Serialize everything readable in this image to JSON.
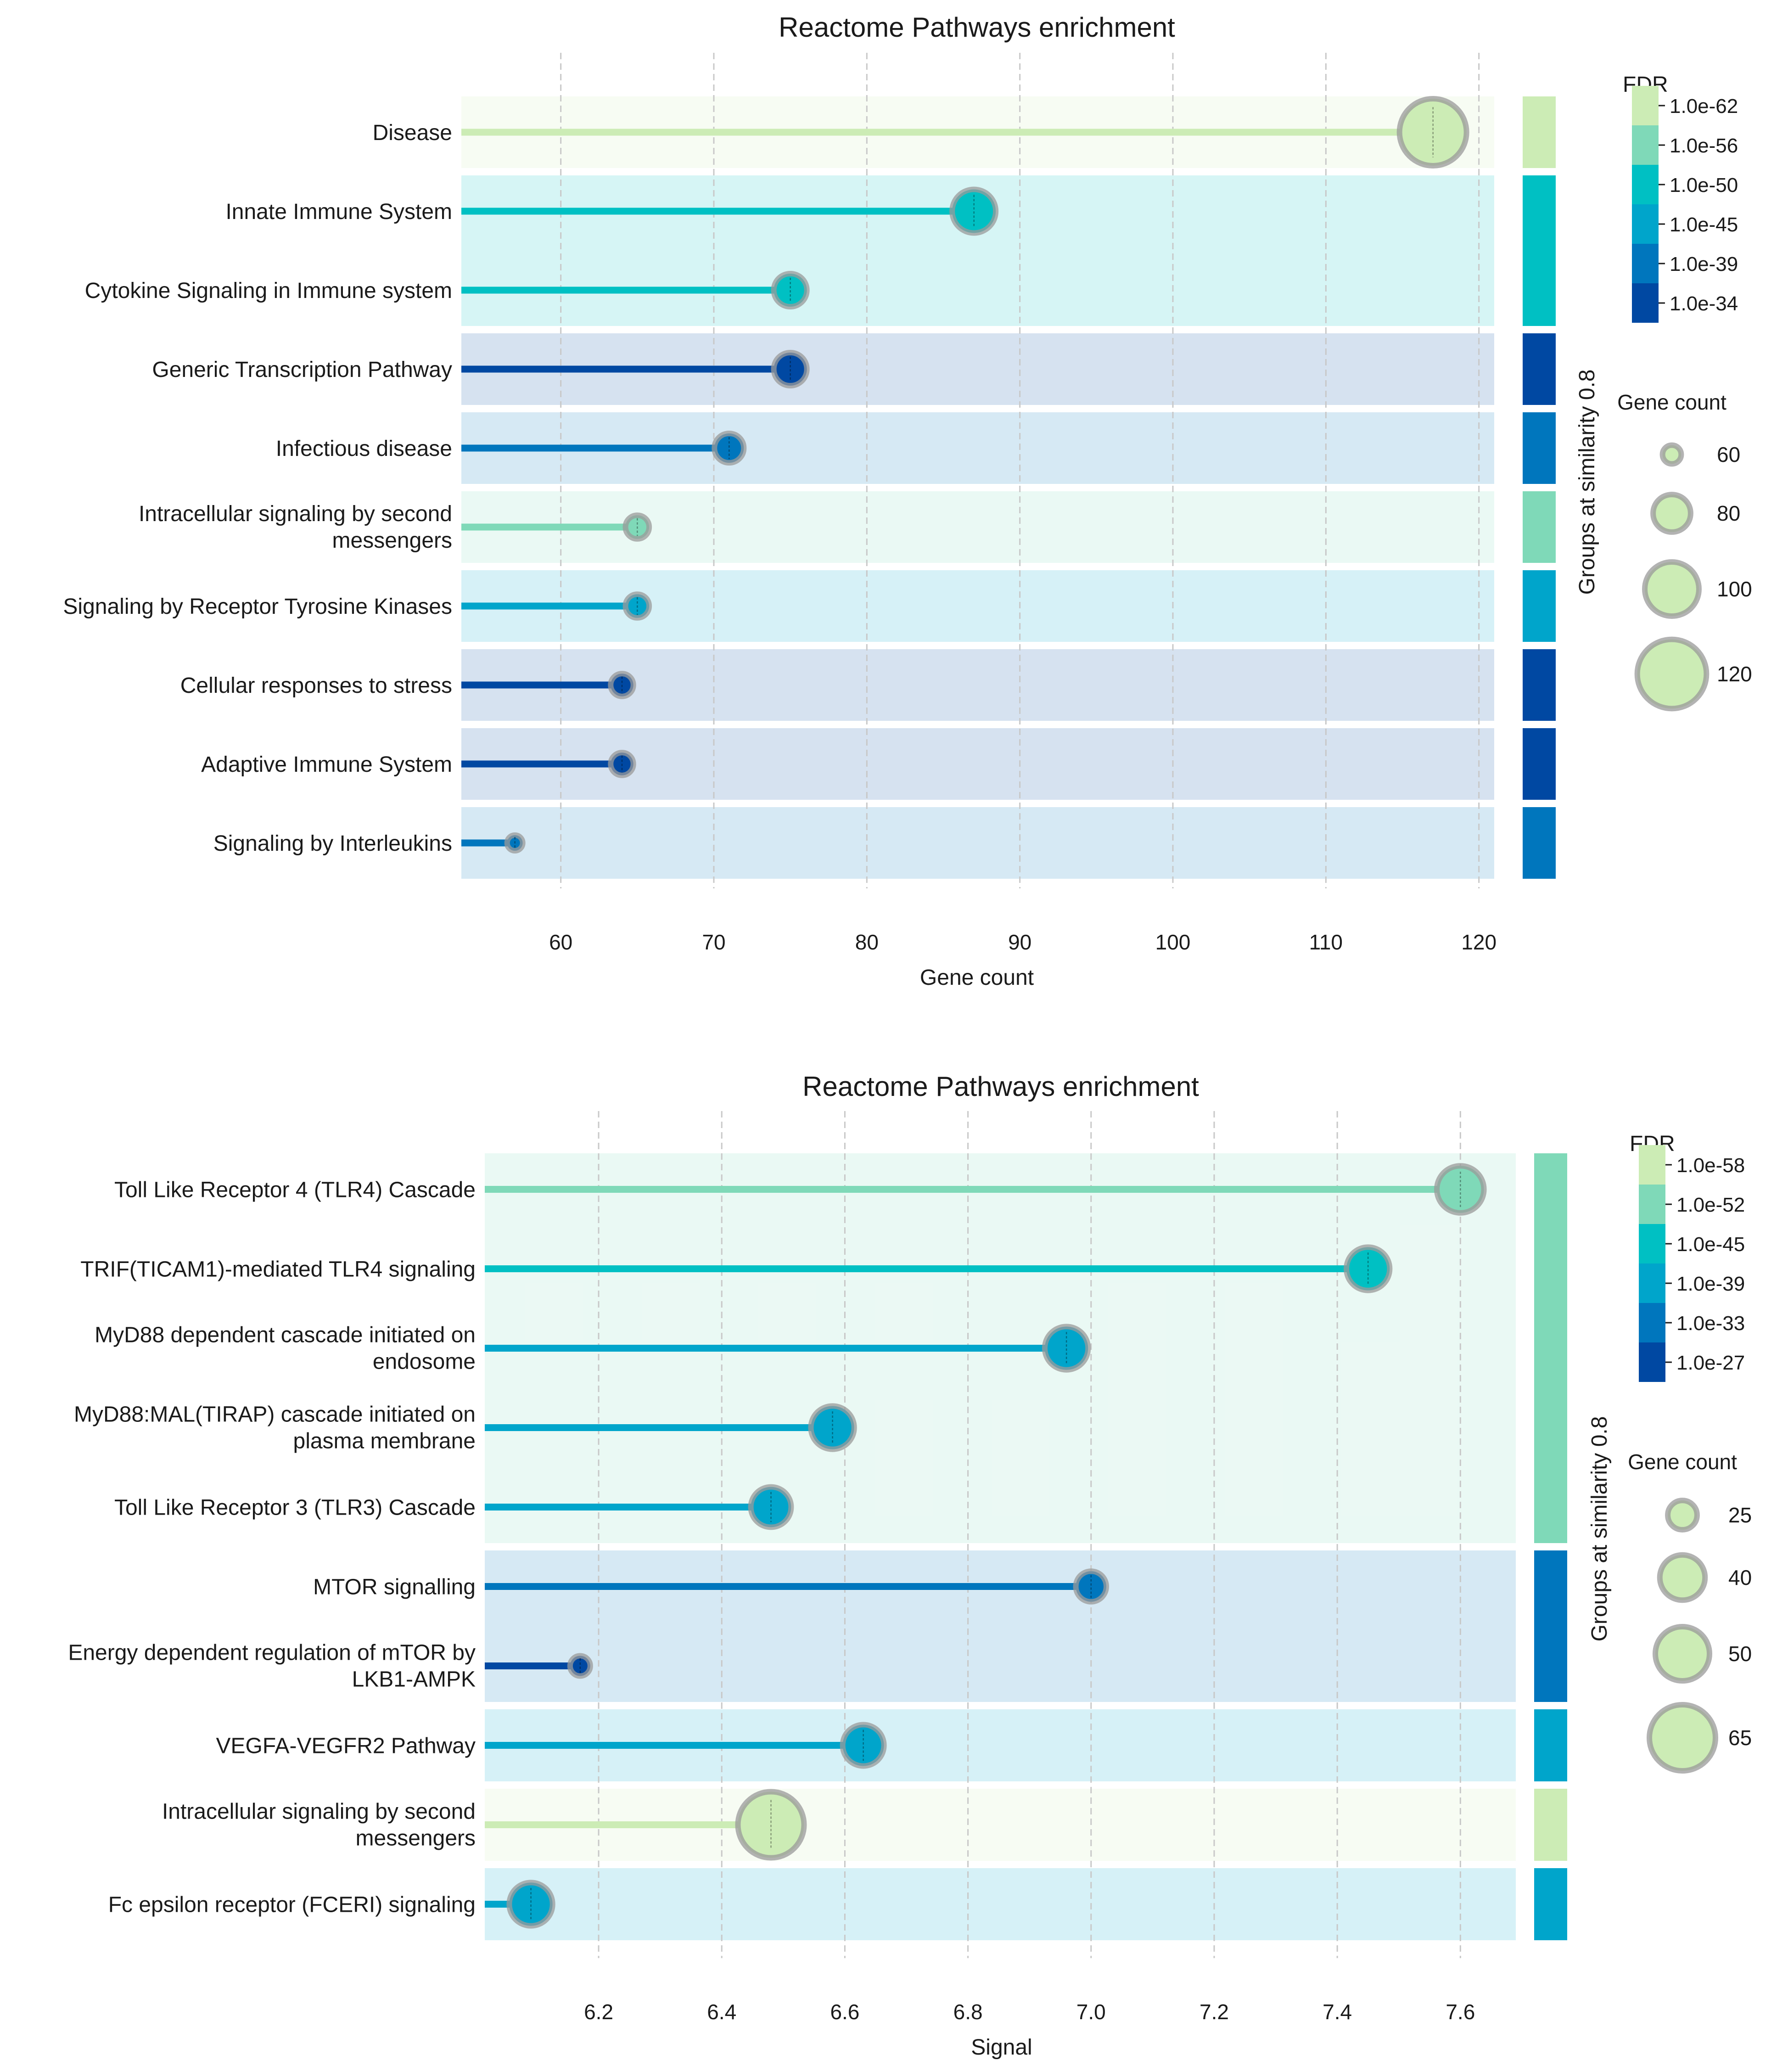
{
  "chart_data": [
    {
      "type": "lollipop",
      "title": "Reactome Pathways enrichment",
      "xlabel": "Gene count",
      "ylabel": "",
      "xlim": [
        53.5,
        121
      ],
      "xticks": [
        60,
        70,
        80,
        90,
        100,
        110,
        120
      ],
      "group_axis_label": "Groups at similarity 0.8",
      "fdr_legend": {
        "title": "FDR",
        "labels": [
          "1.0e-62",
          "1.0e-56",
          "1.0e-50",
          "1.0e-45",
          "1.0e-39",
          "1.0e-34"
        ],
        "colors": [
          "#ccecb5",
          "#7fd9b8",
          "#00c0c3",
          "#00a5cb",
          "#0076bd",
          "#0048a2"
        ]
      },
      "size_legend": {
        "title": "Gene count",
        "values": [
          60,
          80,
          100,
          120
        ],
        "labels": [
          "60",
          "80",
          "100",
          "120"
        ],
        "color": "#ccecb5"
      },
      "size_range": [
        57,
        117
      ],
      "rows": [
        {
          "label": "Disease",
          "value": 117,
          "color": "#ccecb5",
          "group": 0
        },
        {
          "label": "Innate Immune System",
          "value": 87,
          "color": "#00c0c3",
          "group": 1
        },
        {
          "label": "Cytokine Signaling in Immune system",
          "value": 75,
          "color": "#00c0c3",
          "group": 1
        },
        {
          "label": "Generic Transcription Pathway",
          "value": 75,
          "color": "#0048a2",
          "group": 2
        },
        {
          "label": "Infectious disease",
          "value": 71,
          "color": "#0076bd",
          "group": 3
        },
        {
          "label": "Intracellular signaling by second messengers",
          "value": 65,
          "color": "#7fd9b8",
          "group": 4
        },
        {
          "label": "Signaling by Receptor Tyrosine Kinases",
          "value": 65,
          "color": "#00a5cb",
          "group": 5
        },
        {
          "label": "Cellular responses to stress",
          "value": 64,
          "color": "#0048a2",
          "group": 6
        },
        {
          "label": "Adaptive Immune System",
          "value": 64,
          "color": "#0048a2",
          "group": 7
        },
        {
          "label": "Signaling by Interleukins",
          "value": 57,
          "color": "#0076bd",
          "group": 8
        }
      ],
      "groups": [
        {
          "color": "#ccecb5",
          "rows": [
            0,
            0
          ]
        },
        {
          "color": "#00c0c3",
          "rows": [
            1,
            2
          ]
        },
        {
          "color": "#0048a2",
          "rows": [
            3,
            3
          ]
        },
        {
          "color": "#0076bd",
          "rows": [
            4,
            4
          ]
        },
        {
          "color": "#7fd9b8",
          "rows": [
            5,
            5
          ]
        },
        {
          "color": "#00a5cb",
          "rows": [
            6,
            6
          ]
        },
        {
          "color": "#0048a2",
          "rows": [
            7,
            7
          ]
        },
        {
          "color": "#0048a2",
          "rows": [
            8,
            8
          ]
        },
        {
          "color": "#0076bd",
          "rows": [
            9,
            9
          ]
        }
      ]
    },
    {
      "type": "lollipop",
      "title": "Reactome Pathways enrichment",
      "xlabel": "Signal",
      "ylabel": "",
      "xlim": [
        6.015,
        7.69
      ],
      "xticks": [
        6.2,
        6.4,
        6.6,
        6.8,
        7.0,
        7.2,
        7.4,
        7.6
      ],
      "xtick_labels": [
        "6.2",
        "6.4",
        "6.6",
        "6.8",
        "7.0",
        "7.2",
        "7.4",
        "7.6"
      ],
      "group_axis_label": "Groups at similarity 0.8",
      "fdr_legend": {
        "title": "FDR",
        "labels": [
          "1.0e-58",
          "1.0e-52",
          "1.0e-45",
          "1.0e-39",
          "1.0e-33",
          "1.0e-27"
        ],
        "colors": [
          "#ccecb5",
          "#7fd9b8",
          "#00c0c3",
          "#00a5cb",
          "#0076bd",
          "#0048a2"
        ]
      },
      "size_legend": {
        "title": "Gene count",
        "values": [
          25,
          40,
          50,
          65
        ],
        "labels": [
          "25",
          "40",
          "50",
          "65"
        ],
        "color": "#ccecb5"
      },
      "size_range": [
        18,
        65
      ],
      "rows": [
        {
          "label": "Toll Like Receptor 4 (TLR4) Cascade",
          "value": 7.6,
          "color": "#7fd9b8",
          "size": 42,
          "group": 0
        },
        {
          "label": "TRIF(TICAM1)-mediated TLR4 signaling",
          "value": 7.45,
          "color": "#00c0c3",
          "size": 38,
          "group": 0
        },
        {
          "label": "MyD88 dependent cascade initiated on endosome",
          "value": 6.96,
          "color": "#00a5cb",
          "size": 38,
          "group": 0
        },
        {
          "label": "MyD88:MAL(TIRAP) cascade initiated on plasma membrane",
          "value": 6.58,
          "color": "#00a5cb",
          "size": 38,
          "group": 0
        },
        {
          "label": "Toll Like Receptor 3 (TLR3) Cascade",
          "value": 6.48,
          "color": "#00a5cb",
          "size": 35,
          "group": 0
        },
        {
          "label": "MTOR signalling",
          "value": 7.0,
          "color": "#0076bd",
          "size": 26,
          "group": 1
        },
        {
          "label": "Energy dependent regulation of mTOR by LKB1-AMPK",
          "value": 6.17,
          "color": "#0048a2",
          "size": 18,
          "group": 1
        },
        {
          "label": "VEGFA-VEGFR2 Pathway",
          "value": 6.63,
          "color": "#00a5cb",
          "size": 36,
          "group": 2
        },
        {
          "label": "Intracellular signaling by second messengers",
          "value": 6.48,
          "color": "#ccecb5",
          "size": 65,
          "group": 3
        },
        {
          "label": "Fc epsilon receptor (FCERI) signaling",
          "value": 6.09,
          "color": "#00a5cb",
          "size": 38,
          "group": 4
        }
      ],
      "groups": [
        {
          "color": "#7fd9b8",
          "rows": [
            0,
            4
          ]
        },
        {
          "color": "#0076bd",
          "rows": [
            5,
            6
          ]
        },
        {
          "color": "#00a5cb",
          "rows": [
            7,
            7
          ]
        },
        {
          "color": "#ccecb5",
          "rows": [
            8,
            8
          ]
        },
        {
          "color": "#00a5cb",
          "rows": [
            9,
            9
          ]
        }
      ]
    }
  ]
}
